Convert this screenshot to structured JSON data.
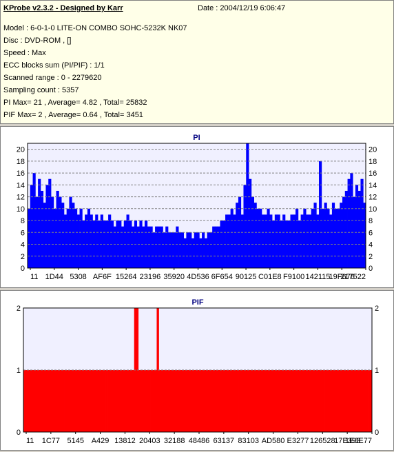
{
  "info": {
    "title": "KProbe v2.3.2 - Designed by Karr",
    "date": "Date : 2004/12/19 6:06:47",
    "lines": [
      "Model : 6-0-1-0 LITE-ON COMBO SOHC-5232K NK07",
      "Disc : DVD-ROM ,  []",
      "Speed : Max",
      "ECC blocks sum (PI/PIF) : 1/1",
      "Scanned range : 0 - 2279620",
      "Sampling count : 5357",
      "PI Max= 21 , Average= 4.82 , Total= 25832",
      "PIF Max= 2 , Average= 0.64 , Total= 3451"
    ]
  },
  "chart_data": [
    {
      "type": "bar",
      "title": "PI",
      "ylim": [
        0,
        21
      ],
      "yticks": [
        0,
        2,
        4,
        6,
        8,
        10,
        12,
        14,
        16,
        18,
        20
      ],
      "xticks": [
        "11",
        "1D44",
        "5308",
        "AF6F",
        "15264",
        "23196",
        "35920",
        "4D536",
        "6F654",
        "90125",
        "C01E8",
        "F9100",
        "142115",
        "19F676",
        "217522"
      ],
      "grid": true,
      "colors": {
        "bar": "#0000ff",
        "plot_bg": "#f0f0ff",
        "grid": "#808080"
      },
      "series": [
        {
          "values": [
            10,
            14,
            16,
            12,
            15,
            13,
            11,
            14,
            15,
            12,
            10,
            13,
            12,
            11,
            9,
            10,
            12,
            11,
            10,
            9,
            10,
            8,
            9,
            10,
            9,
            8,
            9,
            8,
            9,
            8,
            8,
            9,
            8,
            7,
            8,
            8,
            7,
            8,
            9,
            8,
            7,
            8,
            7,
            8,
            7,
            8,
            7,
            7,
            6,
            7,
            7,
            7,
            6,
            7,
            6,
            6,
            6,
            7,
            6,
            6,
            5,
            6,
            6,
            5,
            6,
            6,
            5,
            6,
            5,
            6,
            6,
            7,
            7,
            7,
            8,
            8,
            9,
            9,
            10,
            9,
            11,
            12,
            9,
            14,
            21,
            15,
            12,
            11,
            10,
            10,
            9,
            9,
            10,
            9,
            8,
            9,
            9,
            8,
            9,
            8,
            8,
            9,
            9,
            10,
            8,
            9,
            10,
            9,
            9,
            10,
            11,
            9,
            18,
            10,
            11,
            10,
            9,
            11,
            10,
            10,
            11,
            12,
            13,
            15,
            16,
            12,
            14,
            13,
            15,
            11
          ]
        }
      ]
    },
    {
      "type": "bar",
      "title": "PIF",
      "ylim": [
        0,
        2
      ],
      "yticks": [
        0,
        1,
        2
      ],
      "xticks": [
        "11",
        "1C77",
        "5145",
        "A429",
        "13812",
        "20403",
        "32188",
        "48486",
        "63137",
        "83103",
        "AD580",
        "E3277",
        "126528",
        "17E393",
        "1E8E77"
      ],
      "grid": true,
      "colors": {
        "bar": "#ff0000",
        "plot_bg": "#f0f0ff",
        "grid": "#808080"
      },
      "series": [
        {
          "values": [
            1,
            1,
            1,
            1,
            1,
            1,
            1,
            1,
            1,
            1,
            1,
            1,
            1,
            1,
            1,
            1,
            1,
            1,
            1,
            1,
            1,
            1,
            1,
            1,
            1,
            1,
            1,
            1,
            1,
            1,
            1,
            1,
            1,
            1,
            1,
            1,
            1,
            1,
            1,
            1,
            1,
            1,
            1,
            1,
            1,
            1,
            1,
            1,
            1,
            1,
            1,
            1,
            1,
            1,
            2,
            2,
            1,
            1,
            1,
            1,
            1,
            1,
            1,
            1,
            1,
            2,
            1,
            1,
            1,
            1,
            1,
            1,
            1,
            1,
            1,
            1,
            1,
            1,
            1,
            1,
            1,
            1,
            1,
            1,
            1,
            1,
            1,
            1,
            1,
            1,
            1,
            1,
            1,
            1,
            1,
            1,
            1,
            1,
            1,
            1,
            1,
            1,
            1,
            1,
            1,
            1,
            1,
            1,
            1,
            1,
            1,
            1,
            1,
            1,
            1,
            1,
            1,
            1,
            1,
            1,
            1,
            1,
            1,
            1,
            1,
            1,
            1,
            1,
            1,
            1,
            1,
            1,
            1,
            1,
            1,
            1,
            1,
            1,
            1,
            1,
            1,
            1,
            1,
            1,
            1,
            1,
            1,
            1,
            1,
            1,
            1,
            1,
            1,
            1,
            1,
            1,
            1,
            1,
            1,
            1,
            1,
            1,
            1,
            1,
            1,
            1,
            1,
            1,
            1,
            1
          ]
        }
      ]
    }
  ]
}
